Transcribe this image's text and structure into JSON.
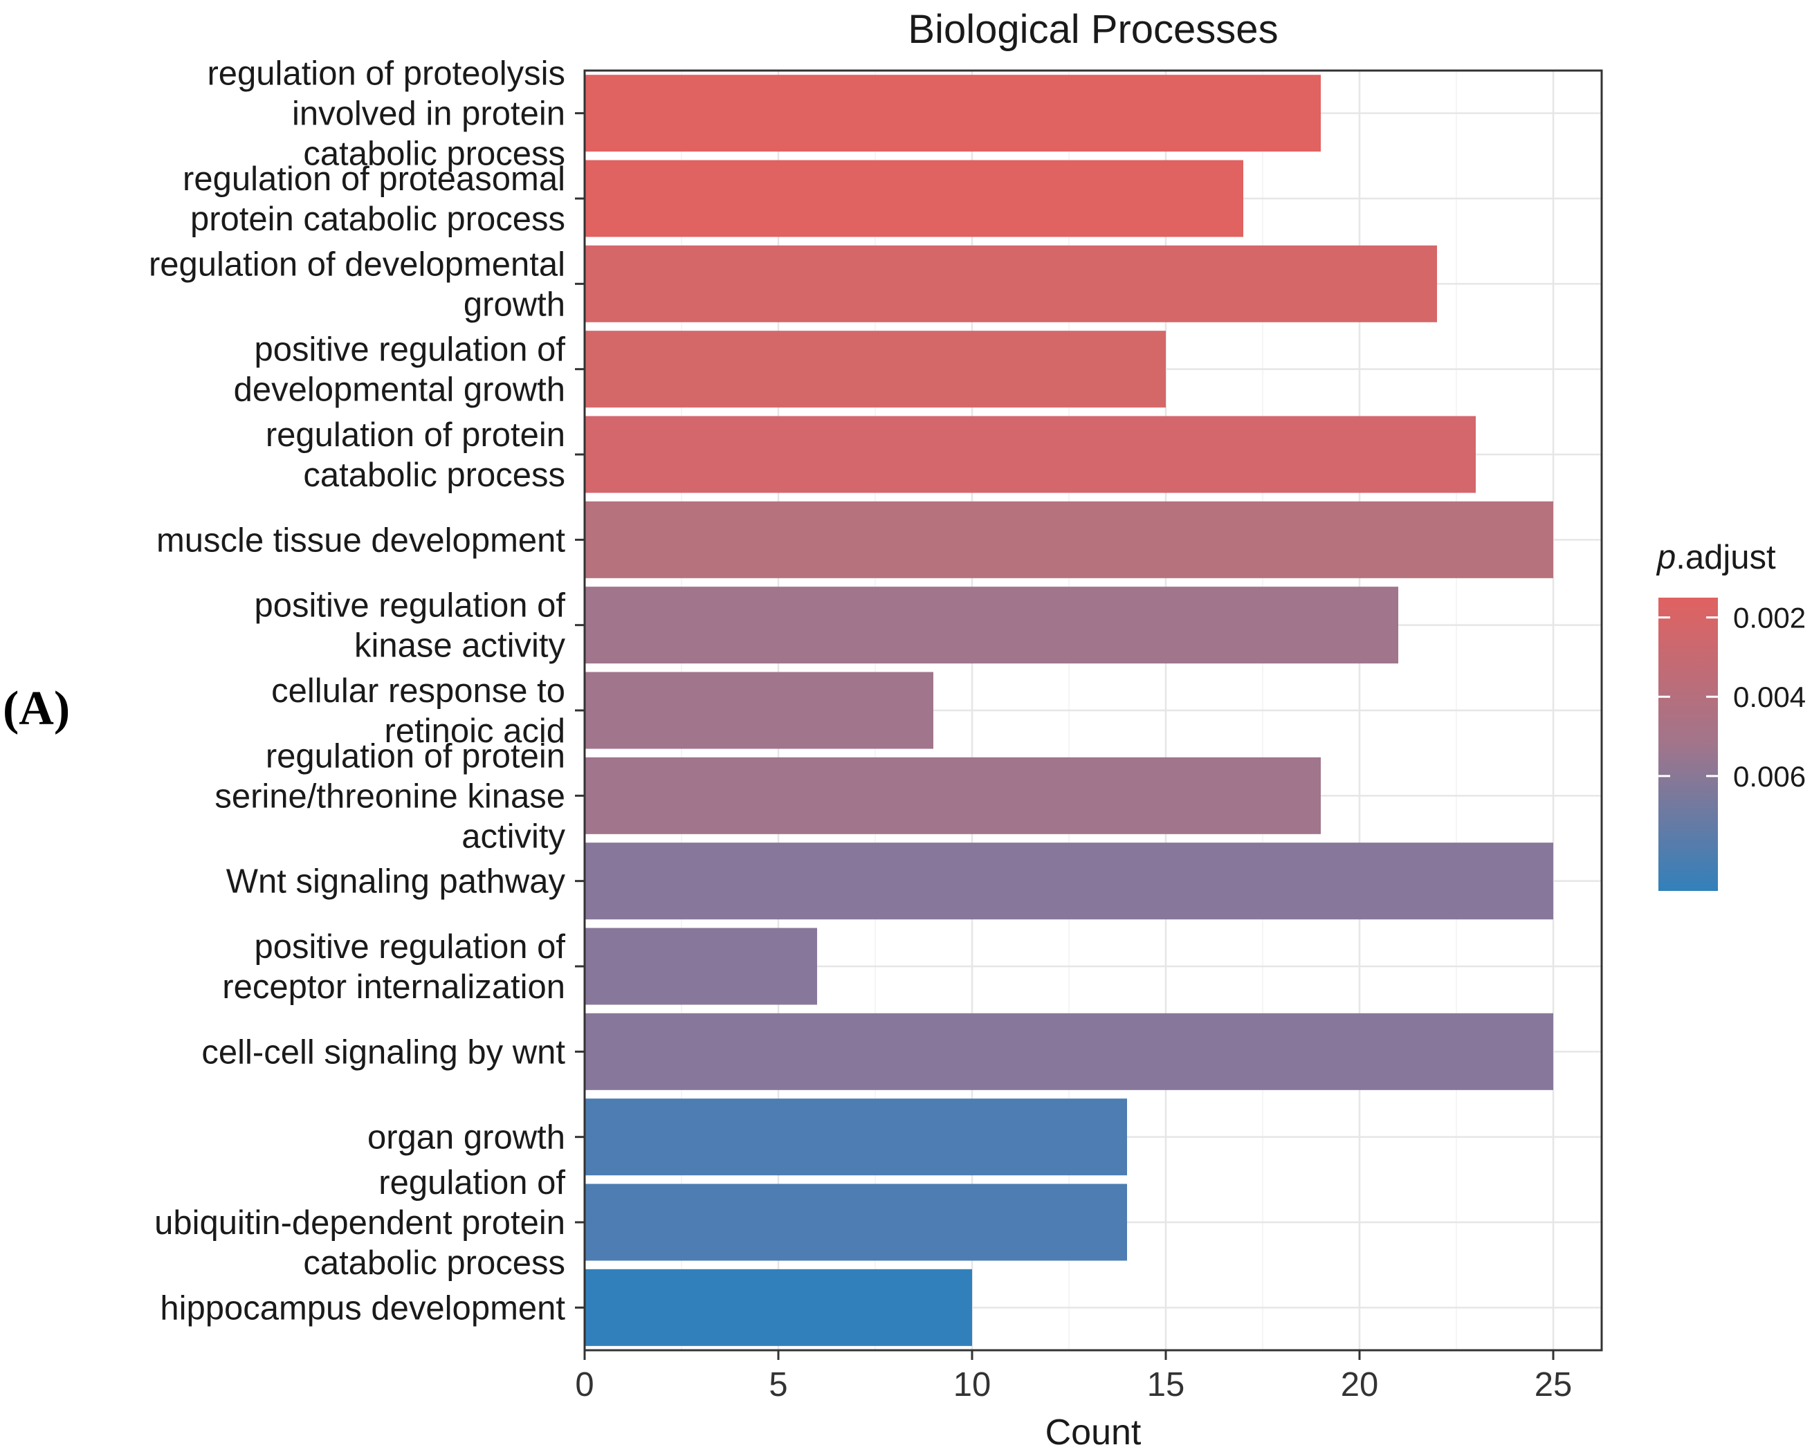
{
  "panel_tag": "(A)",
  "chart_data": {
    "type": "bar",
    "orientation": "horizontal",
    "title": "Biological Processes",
    "xlabel": "Count",
    "ylabel": "",
    "xlim": [
      0,
      26.25
    ],
    "xticks": [
      0,
      5,
      10,
      15,
      20,
      25
    ],
    "grid": true,
    "categories": [
      "regulation of proteolysis involved in protein catabolic process",
      "regulation of proteasomal protein catabolic process",
      "regulation of developmental growth",
      "positive regulation of developmental growth",
      "regulation of protein catabolic process",
      "muscle tissue development",
      "positive regulation of kinase activity",
      "cellular response to retinoic acid",
      "regulation of protein serine/threonine kinase activity",
      "Wnt signaling pathway",
      "positive regulation of receptor internalization",
      "cell-cell signaling by wnt",
      "organ growth",
      "regulation of ubiquitin-dependent protein catabolic process",
      "hippocampus development"
    ],
    "category_lines": [
      [
        "regulation of proteolysis",
        "involved in protein",
        "catabolic process"
      ],
      [
        "regulation of proteasomal",
        "protein catabolic process"
      ],
      [
        "regulation of developmental",
        "growth"
      ],
      [
        "positive regulation of",
        "developmental growth"
      ],
      [
        "regulation of protein",
        "catabolic process"
      ],
      [
        "muscle tissue development"
      ],
      [
        "positive regulation of",
        "kinase activity"
      ],
      [
        "cellular response to",
        "retinoic acid"
      ],
      [
        "regulation of protein",
        "serine/threonine kinase",
        "activity"
      ],
      [
        "Wnt signaling pathway"
      ],
      [
        "positive regulation of",
        "receptor internalization"
      ],
      [
        "cell-cell signaling by wnt"
      ],
      [
        "organ growth"
      ],
      [
        "regulation of",
        "ubiquitin-dependent protein",
        "catabolic process"
      ],
      [
        "hippocampus development"
      ]
    ],
    "values": [
      19,
      17,
      22,
      15,
      23,
      25,
      21,
      9,
      19,
      25,
      6,
      25,
      14,
      14,
      10
    ],
    "color_values": [
      0.0017,
      0.0017,
      0.0027,
      0.0027,
      0.0028,
      0.0038,
      0.0046,
      0.0046,
      0.0046,
      0.0057,
      0.0057,
      0.0057,
      0.008,
      0.008,
      0.0089
    ],
    "colors": [
      "#e06261",
      "#e06261",
      "#d56769",
      "#d46869",
      "#d3676c",
      "#b6727d",
      "#a1758b",
      "#a1758b",
      "#a1758b",
      "#87789b",
      "#87789b",
      "#87789b",
      "#4d7db2",
      "#4d7db2",
      "#3280bb"
    ],
    "legend": {
      "title_italic": "p",
      "title_rest": ".adjust",
      "placement": "right",
      "labels": [
        "0.002",
        "0.004",
        "0.006"
      ],
      "range": [
        0.0015,
        0.0089
      ],
      "color_high": "#e06261",
      "color_low": "#3280bb"
    }
  }
}
